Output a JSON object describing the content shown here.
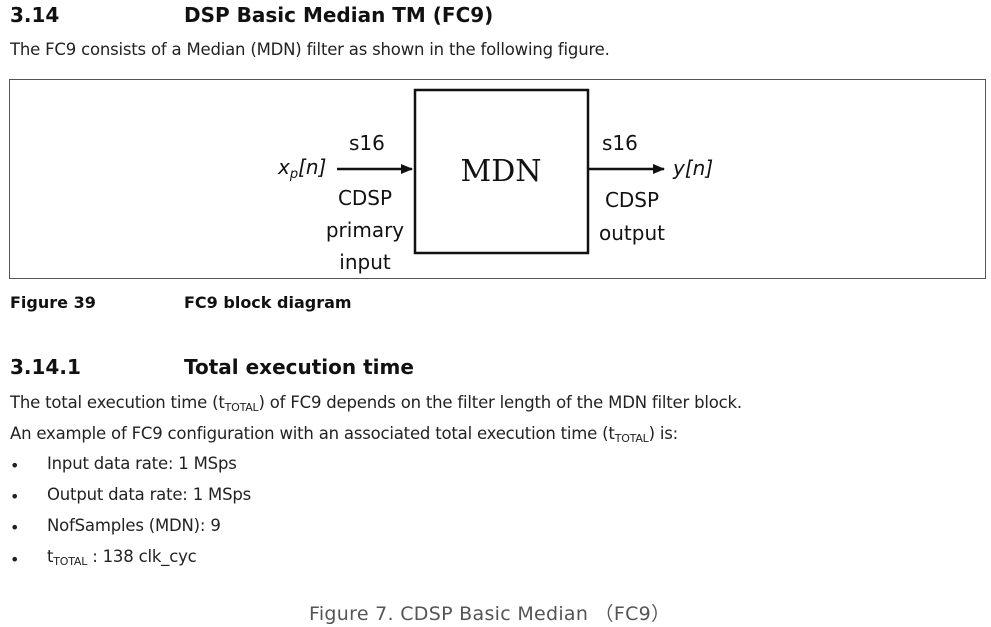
{
  "section": {
    "number": "3.14",
    "title": "DSP Basic Median TM (FC9)",
    "intro": "The FC9 consists of a Median (MDN) filter as shown in the following figure."
  },
  "diagram": {
    "input_signal_base": "x",
    "input_signal_sub": "p",
    "input_signal_suffix": "[n]",
    "input_type": "s16",
    "input_label_lines": [
      "CDSP",
      "primary",
      "input"
    ],
    "block_label": "MDN",
    "output_type": "s16",
    "output_signal": "y[n]",
    "output_label_lines": [
      "CDSP",
      "output"
    ]
  },
  "figure": {
    "number": "Figure 39",
    "title": "FC9 block diagram"
  },
  "subsection": {
    "number": "3.14.1",
    "title": "Total execution time",
    "line1_pre": "The total execution time (t",
    "line1_sub": "TOTAL",
    "line1_post": ") of FC9 depends on the filter length of the MDN filter block.",
    "line2_pre": "An example of FC9 configuration with an associated total execution time (t",
    "line2_sub": "TOTAL",
    "line2_post": ") is:"
  },
  "bullets": {
    "marker": "•",
    "item1": "Input data rate: 1 MSps",
    "item2": "Output data rate: 1 MSps",
    "item3": "NofSamples (MDN): 9",
    "item4_pre": "t",
    "item4_sub": "TOTAL",
    "item4_post": " : 138 clk_cyc"
  },
  "caption": "Figure 7. CDSP Basic Median （FC9）"
}
